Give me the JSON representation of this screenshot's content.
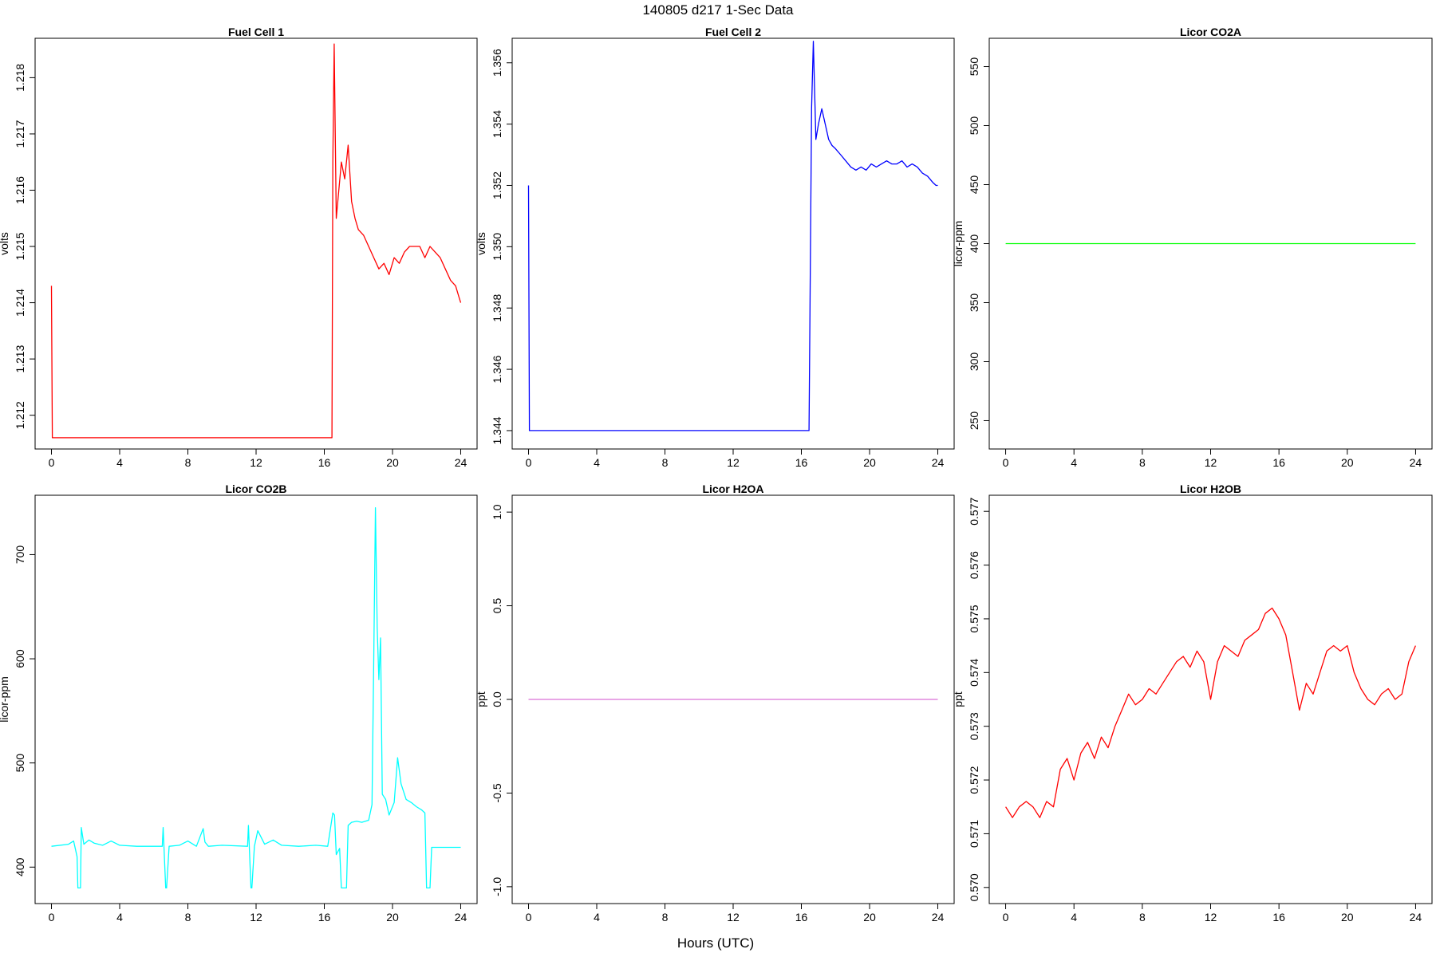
{
  "figure": {
    "title": "140805   d217   1-Sec Data",
    "xlabel": "Hours (UTC)"
  },
  "chart_data": [
    {
      "type": "line",
      "title": "Fuel Cell 1",
      "xlabel": "",
      "ylabel": "volts",
      "color": "#ff0000",
      "xlim": [
        0,
        24
      ],
      "ylim": [
        1.2114,
        1.2187
      ],
      "xticks": [
        0,
        4,
        8,
        12,
        16,
        20,
        24
      ],
      "yticks": [
        1.212,
        1.213,
        1.214,
        1.215,
        1.216,
        1.217,
        1.218
      ],
      "x": [
        0,
        0.05,
        16.45,
        16.5,
        16.58,
        16.7,
        16.85,
        17.0,
        17.2,
        17.4,
        17.6,
        17.8,
        18.0,
        18.3,
        18.6,
        18.9,
        19.2,
        19.5,
        19.8,
        20.1,
        20.4,
        20.7,
        21.0,
        21.3,
        21.6,
        21.9,
        22.2,
        22.5,
        22.8,
        23.1,
        23.4,
        23.7,
        23.9,
        24.0
      ],
      "y": [
        1.2143,
        1.2116,
        1.2116,
        1.2165,
        1.2186,
        1.2155,
        1.216,
        1.2165,
        1.2162,
        1.2168,
        1.2158,
        1.2155,
        1.2153,
        1.2152,
        1.215,
        1.2148,
        1.2146,
        1.2147,
        1.2145,
        1.2148,
        1.2147,
        1.2149,
        1.215,
        1.215,
        1.215,
        1.2148,
        1.215,
        1.2149,
        1.2148,
        1.2146,
        1.2144,
        1.2143,
        1.2141,
        1.214
      ]
    },
    {
      "type": "line",
      "title": "Fuel Cell 2",
      "xlabel": "",
      "ylabel": "volts",
      "color": "#0000ff",
      "xlim": [
        0,
        24
      ],
      "ylim": [
        1.3434,
        1.3568
      ],
      "xticks": [
        0,
        4,
        8,
        12,
        16,
        20,
        24
      ],
      "yticks": [
        1.344,
        1.346,
        1.348,
        1.35,
        1.352,
        1.354,
        1.356
      ],
      "x": [
        0,
        0.05,
        16.45,
        16.6,
        16.7,
        16.85,
        17.0,
        17.2,
        17.4,
        17.6,
        17.8,
        18.0,
        18.3,
        18.6,
        18.9,
        19.2,
        19.5,
        19.8,
        20.1,
        20.4,
        20.7,
        21.0,
        21.3,
        21.6,
        21.9,
        22.2,
        22.5,
        22.8,
        23.1,
        23.4,
        23.7,
        23.9,
        24.0
      ],
      "y": [
        1.352,
        1.344,
        1.344,
        1.3545,
        1.3567,
        1.3535,
        1.354,
        1.3545,
        1.354,
        1.3535,
        1.3533,
        1.3532,
        1.353,
        1.3528,
        1.3526,
        1.3525,
        1.3526,
        1.3525,
        1.3527,
        1.3526,
        1.3527,
        1.3528,
        1.3527,
        1.3527,
        1.3528,
        1.3526,
        1.3527,
        1.3526,
        1.3524,
        1.3523,
        1.3521,
        1.352,
        1.352
      ]
    },
    {
      "type": "line",
      "title": "Licor CO2A",
      "xlabel": "",
      "ylabel": "licor-ppm",
      "color": "#00ff00",
      "xlim": [
        0,
        24
      ],
      "ylim": [
        226,
        574
      ],
      "xticks": [
        0,
        4,
        8,
        12,
        16,
        20,
        24
      ],
      "yticks": [
        250,
        300,
        350,
        400,
        450,
        500,
        550
      ],
      "x": [
        0,
        24
      ],
      "y": [
        400,
        400
      ]
    },
    {
      "type": "line",
      "title": "Licor CO2B",
      "xlabel": "",
      "ylabel": "licor-ppm",
      "color": "#00ffff",
      "xlim": [
        0,
        24
      ],
      "ylim": [
        365,
        757
      ],
      "xticks": [
        0,
        4,
        8,
        12,
        16,
        20,
        24
      ],
      "yticks": [
        400,
        500,
        600,
        700
      ],
      "x": [
        0,
        1.0,
        1.3,
        1.5,
        1.55,
        1.7,
        1.75,
        1.9,
        2.2,
        2.5,
        3.0,
        3.5,
        4.0,
        5.0,
        6.5,
        6.55,
        6.7,
        6.75,
        6.9,
        7.5,
        8.0,
        8.5,
        8.9,
        9.0,
        9.2,
        10.0,
        11.5,
        11.55,
        11.7,
        11.75,
        11.9,
        12.1,
        12.5,
        13.0,
        13.5,
        14.5,
        15.5,
        16.2,
        16.5,
        16.6,
        16.7,
        16.9,
        17.0,
        17.3,
        17.4,
        17.6,
        17.9,
        18.2,
        18.6,
        18.8,
        18.9,
        19.0,
        19.1,
        19.2,
        19.3,
        19.4,
        19.6,
        19.8,
        20.1,
        20.3,
        20.5,
        20.8,
        21.1,
        21.4,
        21.7,
        21.9,
        22.0,
        22.2,
        22.3,
        23.0,
        24.0
      ],
      "y": [
        420,
        422,
        425,
        410,
        380,
        380,
        438,
        422,
        426,
        423,
        421,
        425,
        421,
        420,
        420,
        438,
        380,
        380,
        420,
        421,
        425,
        420,
        437,
        424,
        420,
        421,
        420,
        440,
        380,
        380,
        420,
        435,
        422,
        426,
        421,
        420,
        421,
        420,
        452,
        450,
        412,
        418,
        380,
        380,
        440,
        443,
        444,
        443,
        445,
        460,
        600,
        745,
        630,
        580,
        620,
        470,
        465,
        450,
        462,
        505,
        480,
        465,
        462,
        458,
        455,
        452,
        380,
        380,
        419,
        419,
        419
      ]
    },
    {
      "type": "line",
      "title": "Licor H2OA",
      "xlabel": "",
      "ylabel": "ppt",
      "color": "#da70d6",
      "xlim": [
        0,
        24
      ],
      "ylim": [
        -1.09,
        1.09
      ],
      "xticks": [
        0,
        4,
        8,
        12,
        16,
        20,
        24
      ],
      "yticks": [
        -1.0,
        -0.5,
        0.0,
        0.5,
        1.0
      ],
      "x": [
        0,
        24
      ],
      "y": [
        0,
        0
      ]
    },
    {
      "type": "line",
      "title": "Licor H2OB",
      "xlabel": "",
      "ylabel": "ppt",
      "color": "#ff0000",
      "xlim": [
        0,
        24
      ],
      "ylim": [
        0.5697,
        0.5773
      ],
      "xticks": [
        0,
        4,
        8,
        12,
        16,
        20,
        24
      ],
      "yticks": [
        0.57,
        0.571,
        0.572,
        0.573,
        0.574,
        0.575,
        0.576,
        0.577
      ],
      "x": [
        0.0,
        0.4,
        0.8,
        1.2,
        1.6,
        2.0,
        2.4,
        2.8,
        3.2,
        3.6,
        4.0,
        4.4,
        4.8,
        5.2,
        5.6,
        6.0,
        6.4,
        6.8,
        7.2,
        7.6,
        8.0,
        8.4,
        8.8,
        9.2,
        9.6,
        10.0,
        10.4,
        10.8,
        11.2,
        11.6,
        12.0,
        12.4,
        12.8,
        13.2,
        13.6,
        14.0,
        14.4,
        14.8,
        15.2,
        15.6,
        16.0,
        16.4,
        16.8,
        17.2,
        17.6,
        18.0,
        18.4,
        18.8,
        19.2,
        19.6,
        20.0,
        20.4,
        20.8,
        21.2,
        21.6,
        22.0,
        22.4,
        22.8,
        23.2,
        23.6,
        24.0
      ],
      "y": [
        0.5715,
        0.5713,
        0.5715,
        0.5716,
        0.5715,
        0.5713,
        0.5716,
        0.5715,
        0.5722,
        0.5724,
        0.572,
        0.5725,
        0.5727,
        0.5724,
        0.5728,
        0.5726,
        0.573,
        0.5733,
        0.5736,
        0.5734,
        0.5735,
        0.5737,
        0.5736,
        0.5738,
        0.574,
        0.5742,
        0.5743,
        0.5741,
        0.5744,
        0.5742,
        0.5735,
        0.5742,
        0.5745,
        0.5744,
        0.5743,
        0.5746,
        0.5747,
        0.5748,
        0.5751,
        0.5752,
        0.575,
        0.5747,
        0.574,
        0.5733,
        0.5738,
        0.5736,
        0.574,
        0.5744,
        0.5745,
        0.5744,
        0.5745,
        0.574,
        0.5737,
        0.5735,
        0.5734,
        0.5736,
        0.5737,
        0.5735,
        0.5736,
        0.5742,
        0.5745
      ]
    }
  ]
}
